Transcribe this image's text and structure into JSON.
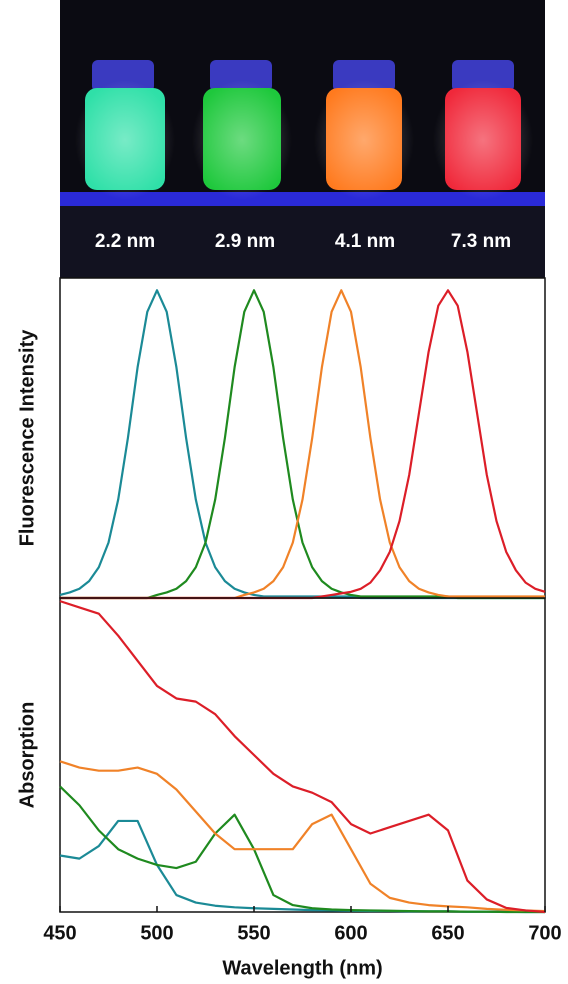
{
  "photo": {
    "labels": [
      "2.2 nm",
      "2.9 nm",
      "4.1 nm",
      "7.3 nm"
    ]
  },
  "chart_data": [
    {
      "type": "line",
      "ylabel": "Fluorescence Intensity",
      "xlim": [
        450,
        700
      ],
      "ylim": [
        0,
        1.04
      ],
      "x": [
        450,
        455,
        460,
        465,
        470,
        475,
        480,
        485,
        490,
        495,
        500,
        505,
        510,
        515,
        520,
        525,
        530,
        535,
        540,
        545,
        550,
        555,
        560,
        565,
        570,
        575,
        580,
        585,
        590,
        595,
        600,
        605,
        610,
        615,
        620,
        625,
        630,
        635,
        640,
        645,
        650,
        655,
        660,
        665,
        670,
        675,
        680,
        685,
        690,
        695,
        700
      ],
      "series": [
        {
          "name": "2.2 nm",
          "color": "#1b8a96",
          "values": [
            0.01,
            0.018,
            0.03,
            0.055,
            0.1,
            0.18,
            0.32,
            0.52,
            0.75,
            0.93,
            1,
            0.93,
            0.75,
            0.52,
            0.32,
            0.18,
            0.1,
            0.055,
            0.03,
            0.018,
            0.01,
            0.005,
            0.005,
            0.005,
            0.005,
            0.005,
            0.005,
            0.005,
            0.005,
            0.005,
            0.005,
            0,
            0,
            0,
            0,
            0,
            0,
            0,
            0,
            0,
            0,
            0,
            0,
            0,
            0,
            0,
            0,
            0,
            0,
            0,
            0
          ]
        },
        {
          "name": "2.9 nm",
          "color": "#1f8a1f",
          "values": [
            0,
            0,
            0,
            0,
            0,
            0,
            0,
            0,
            0,
            0,
            0.01,
            0.018,
            0.03,
            0.055,
            0.1,
            0.18,
            0.32,
            0.52,
            0.75,
            0.93,
            1,
            0.93,
            0.75,
            0.52,
            0.32,
            0.18,
            0.1,
            0.055,
            0.03,
            0.018,
            0.01,
            0.005,
            0.005,
            0.005,
            0.005,
            0.005,
            0.005,
            0.005,
            0.005,
            0.005,
            0.005,
            0,
            0,
            0,
            0,
            0,
            0,
            0,
            0,
            0,
            0
          ]
        },
        {
          "name": "4.1 nm",
          "color": "#f08228",
          "values": [
            0,
            0,
            0,
            0,
            0,
            0,
            0,
            0,
            0,
            0,
            0,
            0,
            0,
            0,
            0,
            0,
            0,
            0,
            0,
            0.01,
            0.018,
            0.03,
            0.055,
            0.1,
            0.18,
            0.32,
            0.52,
            0.75,
            0.93,
            1,
            0.93,
            0.75,
            0.52,
            0.32,
            0.18,
            0.1,
            0.055,
            0.03,
            0.018,
            0.01,
            0.005,
            0.005,
            0.005,
            0.005,
            0.005,
            0.005,
            0.005,
            0.005,
            0.005,
            0.005,
            0.005
          ]
        },
        {
          "name": "7.3 nm",
          "color": "#dc1e28",
          "values": [
            0,
            0,
            0,
            0,
            0,
            0,
            0,
            0,
            0,
            0,
            0,
            0,
            0,
            0,
            0,
            0,
            0,
            0,
            0,
            0,
            0,
            0,
            0,
            0,
            0,
            0,
            0,
            0.005,
            0.01,
            0.015,
            0.02,
            0.03,
            0.05,
            0.09,
            0.15,
            0.25,
            0.4,
            0.6,
            0.8,
            0.95,
            1,
            0.95,
            0.8,
            0.6,
            0.4,
            0.25,
            0.15,
            0.09,
            0.05,
            0.03,
            0.02
          ]
        }
      ]
    },
    {
      "type": "line",
      "ylabel": "Absorption",
      "xlabel": "Wavelength (nm)",
      "xlim": [
        450,
        700
      ],
      "ylim": [
        0,
        1
      ],
      "xticks": [
        450,
        500,
        550,
        600,
        650,
        700
      ],
      "x": [
        450,
        460,
        470,
        480,
        490,
        500,
        510,
        520,
        530,
        540,
        550,
        560,
        570,
        580,
        590,
        600,
        610,
        620,
        630,
        640,
        650,
        660,
        670,
        680,
        690,
        700
      ],
      "series": [
        {
          "name": "2.2 nm",
          "color": "#1b8a96",
          "values": [
            0.18,
            0.17,
            0.21,
            0.29,
            0.29,
            0.15,
            0.054,
            0.03,
            0.02,
            0.015,
            0.012,
            0.01,
            0.008,
            0.006,
            0.005,
            0.004,
            0.003,
            0.003,
            0.002,
            0.002,
            0.002,
            0.001,
            0.001,
            0.001,
            0,
            0
          ]
        },
        {
          "name": "2.9 nm",
          "color": "#1f8a1f",
          "values": [
            0.4,
            0.34,
            0.26,
            0.2,
            0.17,
            0.15,
            0.14,
            0.16,
            0.25,
            0.31,
            0.2,
            0.054,
            0.022,
            0.012,
            0.008,
            0.006,
            0.005,
            0.004,
            0.003,
            0.002,
            0.002,
            0.001,
            0.001,
            0,
            0,
            0
          ]
        },
        {
          "name": "4.1 nm",
          "color": "#f08228",
          "values": [
            0.48,
            0.46,
            0.45,
            0.45,
            0.46,
            0.44,
            0.39,
            0.32,
            0.25,
            0.2,
            0.2,
            0.2,
            0.2,
            0.28,
            0.31,
            0.2,
            0.09,
            0.045,
            0.03,
            0.022,
            0.018,
            0.015,
            0.01,
            0.007,
            0.005,
            0.003
          ]
        },
        {
          "name": "7.3 nm",
          "color": "#dc1e28",
          "values": [
            0.99,
            0.97,
            0.95,
            0.88,
            0.8,
            0.72,
            0.68,
            0.67,
            0.63,
            0.56,
            0.5,
            0.44,
            0.4,
            0.38,
            0.35,
            0.28,
            0.25,
            0.27,
            0.29,
            0.31,
            0.26,
            0.1,
            0.04,
            0.013,
            0.005,
            0
          ]
        }
      ]
    }
  ]
}
